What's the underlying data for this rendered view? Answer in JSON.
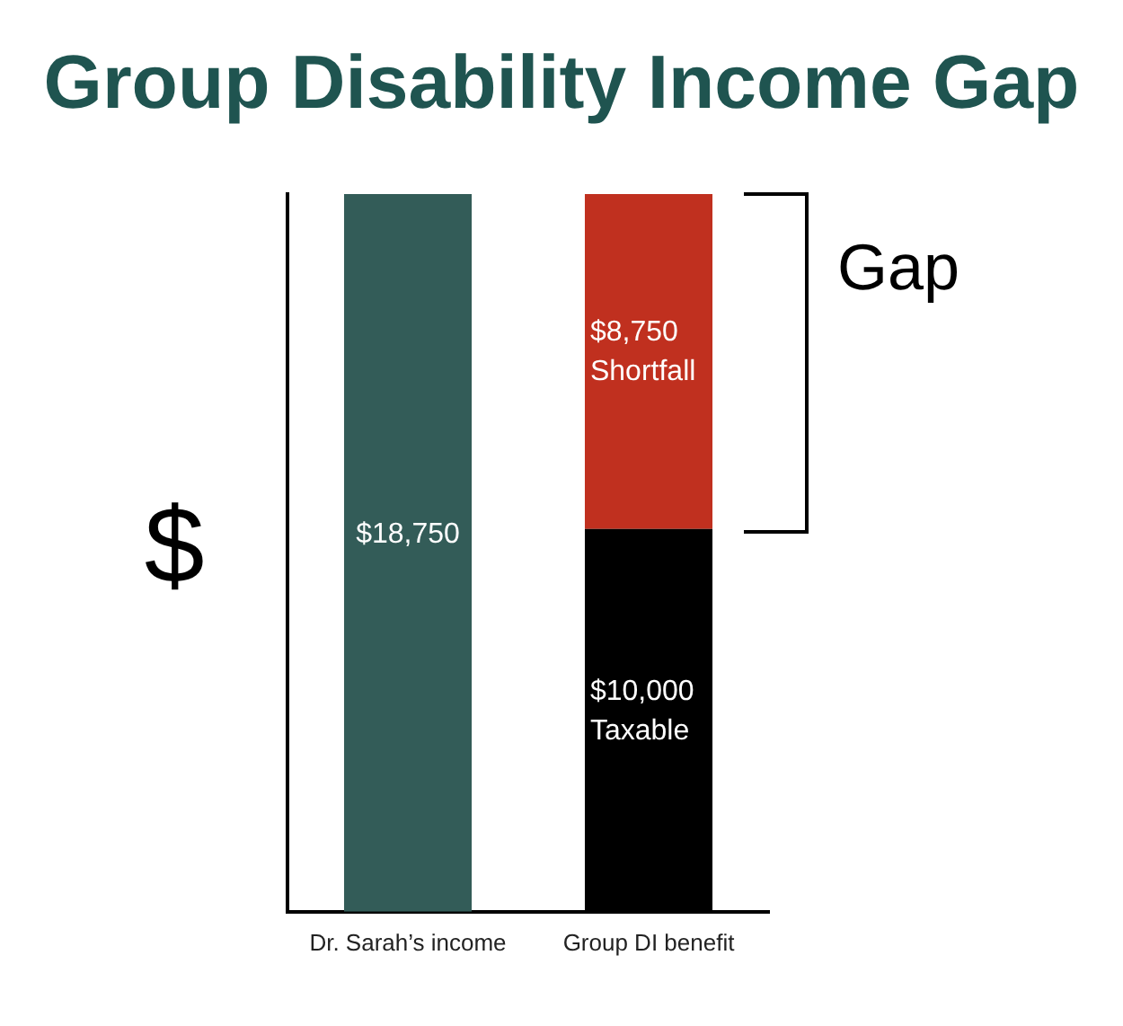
{
  "chart_data": {
    "type": "bar",
    "title": "Group Disability Income Gap",
    "ylabel": "$",
    "categories": [
      "Dr. Sarah’s income",
      "Group DI benefit"
    ],
    "stacked": true,
    "legend": false,
    "grid": false,
    "series": [
      {
        "color": "#335c58",
        "values": [
          18750,
          null
        ],
        "value_labels": [
          "$18,750",
          null
        ]
      },
      {
        "color": "#000000",
        "values": [
          null,
          10000
        ],
        "value_labels": [
          null,
          "$10,000\nTaxable"
        ]
      },
      {
        "color": "#c0301f",
        "values": [
          null,
          8750
        ],
        "value_labels": [
          null,
          "$8,750\nShortfall"
        ]
      }
    ],
    "annotations": [
      "Gap"
    ]
  }
}
